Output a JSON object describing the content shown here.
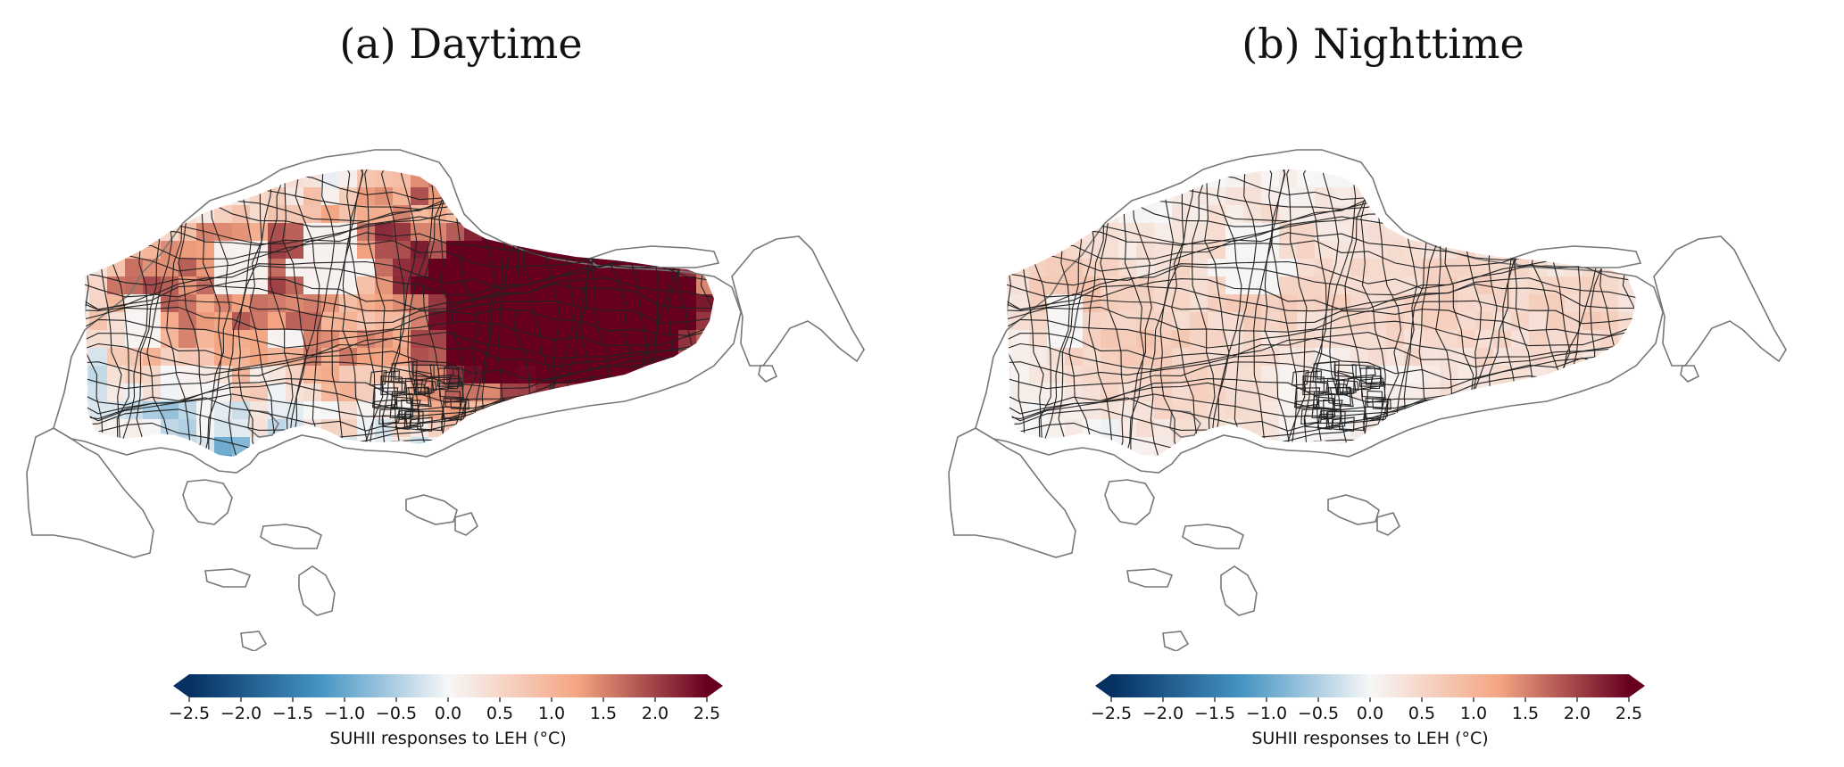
{
  "panels": [
    {
      "id": "a",
      "title": "(a) Daytime"
    },
    {
      "id": "b",
      "title": "(b) Nighttime"
    }
  ],
  "colorbar": {
    "ticks": [
      "−2.5",
      "−2.0",
      "−1.5",
      "−1.0",
      "−0.5",
      "0.0",
      "0.5",
      "1.0",
      "1.5",
      "2.0",
      "2.5"
    ],
    "tick_values": [
      -2.5,
      -2.0,
      -1.5,
      -1.0,
      -0.5,
      0.0,
      0.5,
      1.0,
      1.5,
      2.0,
      2.5
    ],
    "range": [
      -2.5,
      2.5
    ],
    "label": "SUHII responses to LEH (°C)",
    "colormap": "RdBu_r",
    "extend": "both"
  },
  "colors": {
    "neg_max": "#053061",
    "neg_mid": "#4393c3",
    "neutral": "#f7f7f7",
    "pos_mid": "#f4a582",
    "pos_max": "#67001f",
    "boundary": "#222222",
    "coastline": "#777777"
  }
}
